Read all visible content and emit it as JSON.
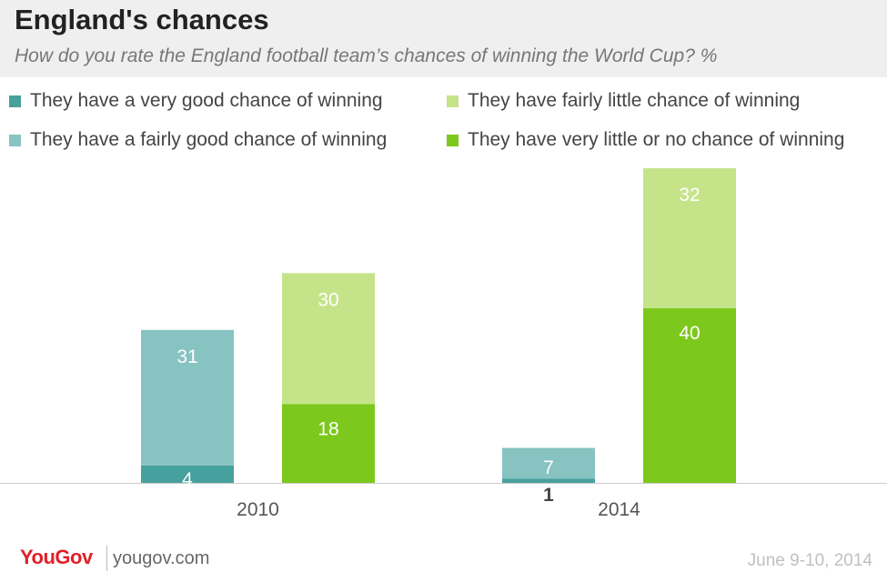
{
  "header": {
    "title": "England's chances",
    "subtitle": "How do you rate the England football team’s chances of winning the World Cup? %"
  },
  "legend": [
    {
      "label": "They have a very good chance of winning",
      "color": "#46a09e"
    },
    {
      "label": "They have fairly little chance of winning",
      "color": "#c5e48a"
    },
    {
      "label": "They have a fairly good chance of winning",
      "color": "#87c3c1"
    },
    {
      "label": "They have very little or no chance of winning",
      "color": "#7dc81c"
    }
  ],
  "chart_data": {
    "type": "bar",
    "stacked": true,
    "title": "England's chances",
    "categories": [
      "2010",
      "2014"
    ],
    "stacks": [
      {
        "name": "good",
        "series": [
          {
            "name": "They have a very good chance of winning",
            "color": "#46a09e",
            "values": [
              4,
              1
            ]
          },
          {
            "name": "They have a fairly good chance of winning",
            "color": "#87c3c1",
            "values": [
              31,
              7
            ]
          }
        ]
      },
      {
        "name": "little",
        "series": [
          {
            "name": "They have very little or no chance of winning",
            "color": "#7dc81c",
            "values": [
              18,
              40
            ]
          },
          {
            "name": "They have fairly little chance of winning",
            "color": "#c5e48a",
            "values": [
              30,
              32
            ]
          }
        ]
      }
    ],
    "data_labels": [
      {
        "category": "2010",
        "values": [
          "4",
          "31",
          "18",
          "30"
        ]
      },
      {
        "category": "2014",
        "values": [
          "1",
          "7",
          "40",
          "32"
        ]
      }
    ],
    "ylim": [
      0,
      72
    ],
    "grid": false,
    "legend_position": "top"
  },
  "footer": {
    "logo": "YouGov",
    "url": "yougov.com",
    "date": "June 9-10, 2014"
  }
}
